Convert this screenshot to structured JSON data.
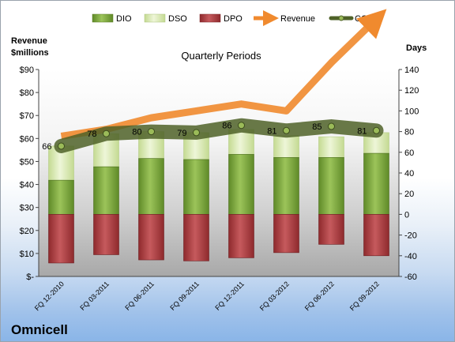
{
  "chart_data": {
    "type": "combo",
    "title": "Quarterly Periods",
    "company": "Omnicell",
    "left_axis": {
      "label_line1": "Revenue",
      "label_line2": "$millions",
      "range": [
        0,
        90
      ],
      "tick_labels": [
        "$-",
        "$10",
        "$20",
        "$30",
        "$40",
        "$50",
        "$60",
        "$70",
        "$80",
        "$90"
      ]
    },
    "right_axis": {
      "label": "Days",
      "range": [
        -60,
        140
      ],
      "tick_labels": [
        "-60",
        "-40",
        "-20",
        "0",
        "20",
        "40",
        "60",
        "80",
        "100",
        "120",
        "140"
      ]
    },
    "categories": [
      "FQ 12-2010",
      "FQ 03-2011",
      "FQ 06-2011",
      "FQ 09-2011",
      "FQ 12-2011",
      "FQ 03-2012",
      "FQ 06-2012",
      "FQ 09-2012"
    ],
    "legend": [
      "DIO",
      "DSO",
      "DPO",
      "Revenue",
      "CCC"
    ],
    "legend_position": "top",
    "series": [
      {
        "name": "DIO",
        "axis": "days",
        "color": "#7aa33a",
        "values": [
          33,
          46,
          54,
          53,
          58,
          55,
          55,
          59
        ]
      },
      {
        "name": "DSO",
        "axis": "days",
        "color": "#d8e9b0",
        "values": [
          33,
          32,
          26,
          26,
          24,
          21,
          20,
          20
        ]
      },
      {
        "name": "DPO",
        "axis": "days",
        "color": "#b03a3e",
        "values": [
          -47,
          -39,
          -44,
          -45,
          -42,
          -37,
          -29,
          -40
        ]
      },
      {
        "name": "Revenue",
        "axis": "revenue",
        "color": "#f08a2e",
        "values": [
          61,
          64,
          69,
          72,
          75,
          72,
          93,
          112
        ]
      },
      {
        "name": "CCC",
        "axis": "days",
        "color": "#4f6228",
        "values": [
          66,
          78,
          80,
          79,
          86,
          81,
          85,
          81
        ]
      }
    ],
    "ccc_labels": [
      "66",
      "78",
      "80",
      "79",
      "86",
      "81",
      "85",
      "81"
    ],
    "grid": false
  }
}
